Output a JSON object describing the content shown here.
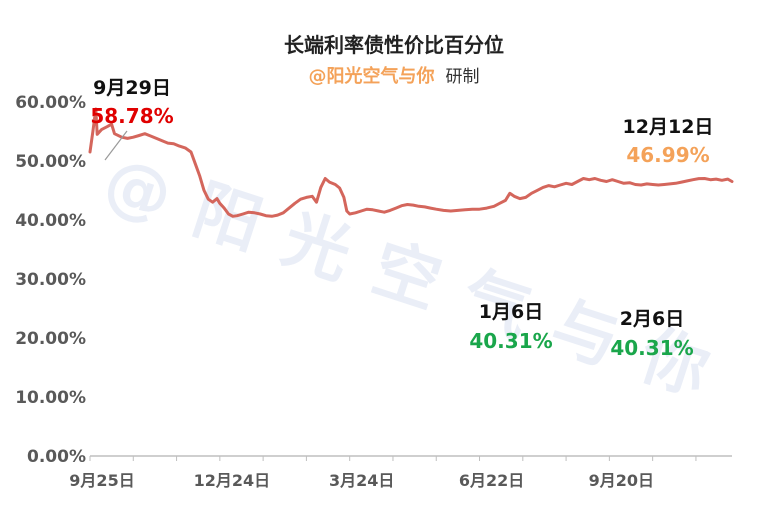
{
  "watermark": "@阳光空气与你",
  "chart_data": {
    "type": "line",
    "title": "长端利率债性价比百分位",
    "subtitle_brand": "@阳光空气与你",
    "subtitle_tail": "研制",
    "ylim": [
      0,
      62
    ],
    "y_ticks": [
      {
        "value": 0,
        "label": "0.00%"
      },
      {
        "value": 10,
        "label": "10.00%"
      },
      {
        "value": 20,
        "label": "20.00%"
      },
      {
        "value": 30,
        "label": "30.00%"
      },
      {
        "value": 40,
        "label": "40.00%"
      },
      {
        "value": 50,
        "label": "50.00%"
      },
      {
        "value": 60,
        "label": "60.00%"
      }
    ],
    "x_ticks": [
      {
        "index": 0,
        "label": "9月25日"
      },
      {
        "index": 90,
        "label": "12月24日"
      },
      {
        "index": 180,
        "label": "3月24日"
      },
      {
        "index": 270,
        "label": "6月22日"
      },
      {
        "index": 360,
        "label": "9月20日"
      }
    ],
    "x_range": [
      0,
      445
    ],
    "series": [
      {
        "color": "#d4665c",
        "points": [
          [
            0,
            51.5
          ],
          [
            2,
            55.0
          ],
          [
            4,
            58.78
          ],
          [
            5,
            54.5
          ],
          [
            8,
            55.3
          ],
          [
            12,
            55.8
          ],
          [
            15,
            56.2
          ],
          [
            17,
            54.6
          ],
          [
            22,
            54.0
          ],
          [
            26,
            53.8
          ],
          [
            30,
            54.0
          ],
          [
            34,
            54.3
          ],
          [
            38,
            54.6
          ],
          [
            42,
            54.2
          ],
          [
            46,
            53.8
          ],
          [
            50,
            53.4
          ],
          [
            54,
            53.0
          ],
          [
            58,
            52.9
          ],
          [
            62,
            52.5
          ],
          [
            66,
            52.2
          ],
          [
            70,
            51.5
          ],
          [
            73,
            49.5
          ],
          [
            76,
            47.5
          ],
          [
            79,
            45.0
          ],
          [
            82,
            43.5
          ],
          [
            85,
            43.0
          ],
          [
            88,
            43.6
          ],
          [
            90,
            42.8
          ],
          [
            93,
            42.0
          ],
          [
            96,
            41.0
          ],
          [
            99,
            40.6
          ],
          [
            102,
            40.7
          ],
          [
            106,
            41.0
          ],
          [
            110,
            41.3
          ],
          [
            114,
            41.2
          ],
          [
            118,
            41.0
          ],
          [
            122,
            40.7
          ],
          [
            126,
            40.6
          ],
          [
            130,
            40.8
          ],
          [
            134,
            41.2
          ],
          [
            138,
            42.0
          ],
          [
            142,
            42.8
          ],
          [
            146,
            43.5
          ],
          [
            150,
            43.8
          ],
          [
            154,
            44.0
          ],
          [
            157,
            43.0
          ],
          [
            160,
            45.5
          ],
          [
            163,
            47.0
          ],
          [
            166,
            46.4
          ],
          [
            170,
            46.0
          ],
          [
            173,
            45.4
          ],
          [
            176,
            43.8
          ],
          [
            178,
            41.5
          ],
          [
            180,
            41.0
          ],
          [
            184,
            41.2
          ],
          [
            188,
            41.5
          ],
          [
            192,
            41.8
          ],
          [
            196,
            41.7
          ],
          [
            200,
            41.5
          ],
          [
            204,
            41.3
          ],
          [
            208,
            41.6
          ],
          [
            212,
            42.0
          ],
          [
            216,
            42.4
          ],
          [
            220,
            42.6
          ],
          [
            224,
            42.5
          ],
          [
            228,
            42.3
          ],
          [
            232,
            42.2
          ],
          [
            236,
            42.0
          ],
          [
            240,
            41.8
          ],
          [
            245,
            41.6
          ],
          [
            250,
            41.5
          ],
          [
            255,
            41.6
          ],
          [
            260,
            41.7
          ],
          [
            265,
            41.8
          ],
          [
            270,
            41.8
          ],
          [
            275,
            42.0
          ],
          [
            280,
            42.3
          ],
          [
            284,
            42.8
          ],
          [
            288,
            43.3
          ],
          [
            291,
            44.5
          ],
          [
            294,
            44.0
          ],
          [
            298,
            43.6
          ],
          [
            302,
            43.8
          ],
          [
            306,
            44.5
          ],
          [
            310,
            45.0
          ],
          [
            314,
            45.5
          ],
          [
            318,
            45.8
          ],
          [
            322,
            45.6
          ],
          [
            326,
            45.9
          ],
          [
            330,
            46.2
          ],
          [
            334,
            46.0
          ],
          [
            338,
            46.5
          ],
          [
            342,
            47.0
          ],
          [
            346,
            46.8
          ],
          [
            350,
            47.0
          ],
          [
            354,
            46.7
          ],
          [
            358,
            46.5
          ],
          [
            362,
            46.8
          ],
          [
            366,
            46.5
          ],
          [
            370,
            46.2
          ],
          [
            374,
            46.3
          ],
          [
            378,
            46.0
          ],
          [
            382,
            45.9
          ],
          [
            386,
            46.1
          ],
          [
            390,
            46.0
          ],
          [
            394,
            45.9
          ],
          [
            398,
            46.0
          ],
          [
            402,
            46.1
          ],
          [
            406,
            46.2
          ],
          [
            410,
            46.4
          ],
          [
            414,
            46.6
          ],
          [
            418,
            46.8
          ],
          [
            422,
            46.99
          ],
          [
            426,
            47.0
          ],
          [
            430,
            46.8
          ],
          [
            434,
            46.9
          ],
          [
            438,
            46.7
          ],
          [
            442,
            46.9
          ],
          [
            445,
            46.5
          ]
        ]
      }
    ],
    "annotations": [
      {
        "date": "9月29日",
        "value": "58.78%",
        "color": "#e00000"
      },
      {
        "date": "12月12日",
        "value": "46.99%",
        "color": "#f4a259"
      },
      {
        "date": "1月6日",
        "value": "40.31%",
        "color": "#1aa64b"
      },
      {
        "date": "2月6日",
        "value": "40.31%",
        "color": "#1aa64b"
      }
    ]
  }
}
